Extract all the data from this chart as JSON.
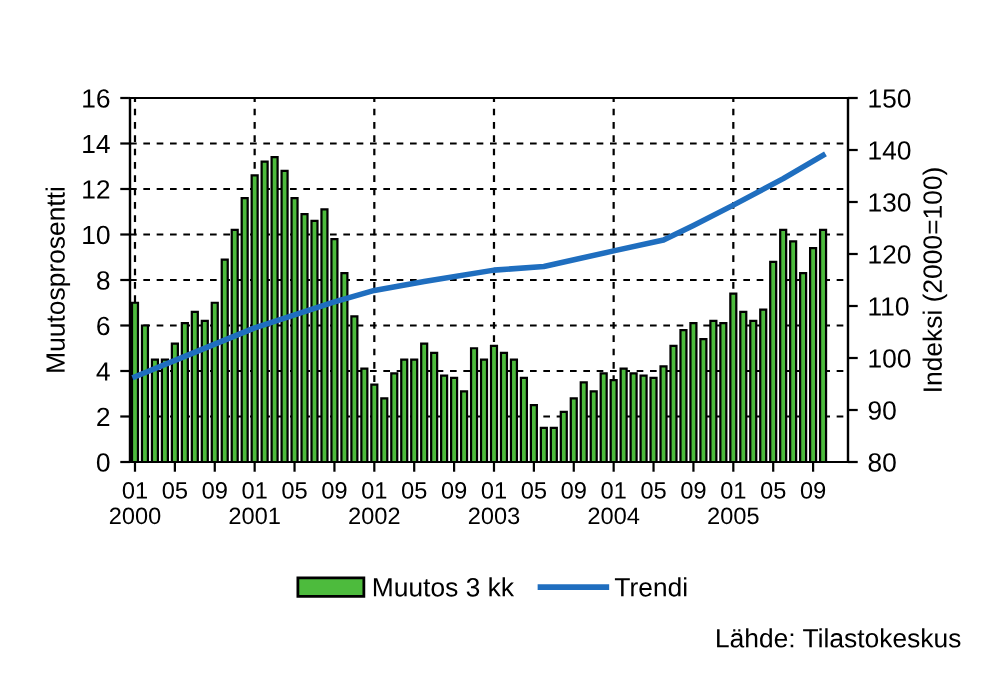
{
  "chart_data": {
    "type": "bar",
    "xlabel": null,
    "ylabel": "Muutosprosentti",
    "y2label": "Indeksi (2000=100)",
    "x": [
      "2000-01",
      "2000-02",
      "2000-03",
      "2000-04",
      "2000-05",
      "2000-06",
      "2000-07",
      "2000-08",
      "2000-09",
      "2000-10",
      "2000-11",
      "2000-12",
      "2001-01",
      "2001-02",
      "2001-03",
      "2001-04",
      "2001-05",
      "2001-06",
      "2001-07",
      "2001-08",
      "2001-09",
      "2001-10",
      "2001-11",
      "2001-12",
      "2002-01",
      "2002-02",
      "2002-03",
      "2002-04",
      "2002-05",
      "2002-06",
      "2002-07",
      "2002-08",
      "2002-09",
      "2002-10",
      "2002-11",
      "2002-12",
      "2003-01",
      "2003-02",
      "2003-03",
      "2003-04",
      "2003-05",
      "2003-06",
      "2003-07",
      "2003-08",
      "2003-09",
      "2003-10",
      "2003-11",
      "2003-12",
      "2004-01",
      "2004-02",
      "2004-03",
      "2004-04",
      "2004-05",
      "2004-06",
      "2004-07",
      "2004-08",
      "2004-09",
      "2004-10",
      "2004-11",
      "2004-12",
      "2005-01",
      "2005-02",
      "2005-03",
      "2005-04",
      "2005-05",
      "2005-06",
      "2005-07",
      "2005-08",
      "2005-09",
      "2005-10"
    ],
    "series": [
      {
        "name": "Muutos 3 kk",
        "color": "#4dbb3d",
        "values": [
          7.0,
          6.0,
          4.5,
          4.5,
          5.2,
          6.1,
          6.6,
          6.2,
          7.0,
          8.9,
          10.2,
          11.6,
          12.6,
          13.2,
          13.4,
          12.8,
          11.6,
          10.9,
          10.6,
          11.1,
          9.8,
          8.3,
          6.4,
          4.1,
          3.4,
          2.8,
          3.9,
          4.5,
          4.5,
          5.2,
          4.8,
          3.8,
          3.7,
          3.1,
          5.0,
          4.5,
          5.1,
          4.8,
          4.5,
          3.7,
          2.5,
          1.5,
          1.5,
          2.2,
          2.8,
          3.5,
          3.1,
          3.9,
          3.6,
          4.1,
          3.9,
          3.8,
          3.7,
          4.2,
          5.1,
          5.8,
          6.1,
          5.4,
          6.2,
          6.1,
          7.4,
          6.6,
          6.2,
          6.7,
          8.8,
          10.2,
          9.7,
          8.3,
          9.4,
          10.2
        ]
      },
      {
        "name": "Trendi",
        "type": "line",
        "axis": "y2",
        "color": "#1f6ebf",
        "x": [
          "2000-01",
          "2000-06",
          "2001-01",
          "2001-09",
          "2002-01",
          "2002-06",
          "2003-01",
          "2003-06",
          "2004-01",
          "2004-06",
          "2004-09",
          "2005-01",
          "2005-06",
          "2005-10"
        ],
        "values": [
          96.4,
          100.3,
          105.8,
          110.8,
          113.0,
          114.7,
          116.9,
          117.6,
          120.6,
          122.7,
          125.5,
          129.4,
          134.5,
          139.0
        ]
      }
    ],
    "xlim": [
      "1999-12",
      "2005-12"
    ],
    "xticks": [
      {
        "value": "2000-01",
        "label": "01\n2000"
      },
      {
        "value": "2000-05",
        "label": "05"
      },
      {
        "value": "2000-09",
        "label": "09"
      },
      {
        "value": "2001-01",
        "label": "01\n2001"
      },
      {
        "value": "2001-05",
        "label": "05"
      },
      {
        "value": "2001-09",
        "label": "09"
      },
      {
        "value": "2002-01",
        "label": "01\n2002"
      },
      {
        "value": "2002-05",
        "label": "05"
      },
      {
        "value": "2002-09",
        "label": "09"
      },
      {
        "value": "2003-01",
        "label": "01\n2003"
      },
      {
        "value": "2003-05",
        "label": "05"
      },
      {
        "value": "2003-09",
        "label": "09"
      },
      {
        "value": "2004-01",
        "label": "01\n2004"
      },
      {
        "value": "2004-05",
        "label": "05"
      },
      {
        "value": "2004-09",
        "label": "09"
      },
      {
        "value": "2005-01",
        "label": "01\n2005"
      },
      {
        "value": "2005-05",
        "label": "05"
      },
      {
        "value": "2005-09",
        "label": "09"
      }
    ],
    "ylim": [
      0,
      16
    ],
    "yticks": [
      0,
      2,
      4,
      6,
      8,
      10,
      12,
      14,
      16
    ],
    "y2lim": [
      80,
      150
    ],
    "y2ticks": [
      80,
      90,
      100,
      110,
      120,
      130,
      140,
      150
    ],
    "grid": true,
    "legend": "bottom",
    "annotations": [
      "Lähde: Tilastokeskus"
    ]
  }
}
